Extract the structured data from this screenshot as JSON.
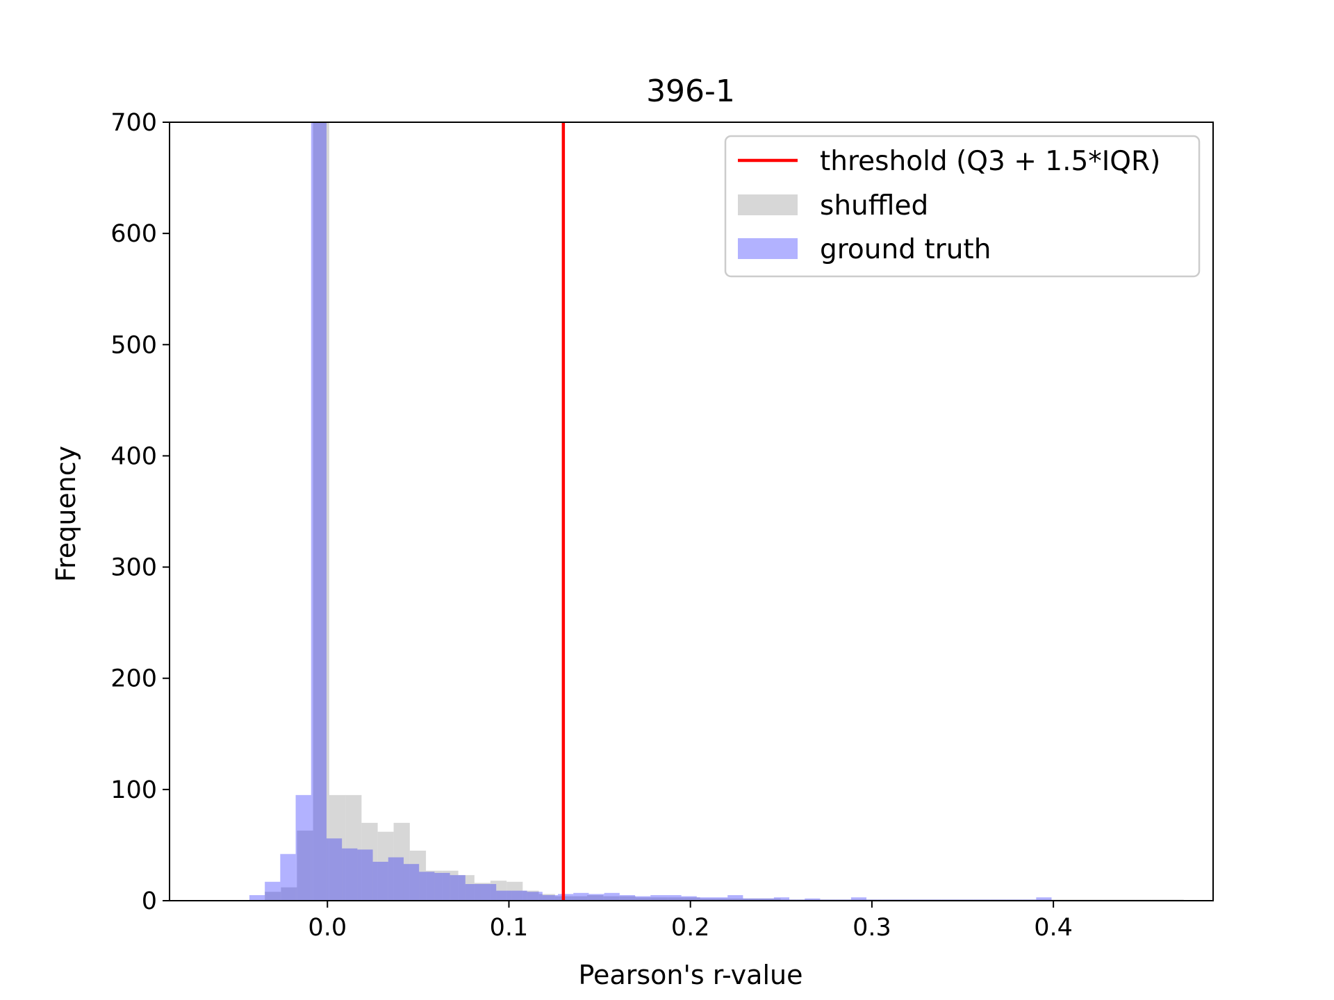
{
  "chart_data": {
    "type": "histogram",
    "title": "396-1",
    "xlabel": "Pearson's r-value",
    "ylabel": "Frequency",
    "xlim": [
      -0.087,
      0.488
    ],
    "ylim": [
      0,
      700
    ],
    "x_ticks": [
      0.0,
      0.1,
      0.2,
      0.3,
      0.4
    ],
    "x_tick_labels": [
      "0.0",
      "0.1",
      "0.2",
      "0.3",
      "0.4"
    ],
    "y_ticks": [
      0,
      100,
      200,
      300,
      400,
      500,
      600,
      700
    ],
    "y_tick_labels": [
      "0",
      "100",
      "200",
      "300",
      "400",
      "500",
      "600",
      "700"
    ],
    "threshold": 0.13,
    "legend": {
      "placement": "top-right",
      "entries": [
        {
          "label": "threshold (Q3 + 1.5*IQR)",
          "kind": "line",
          "color": "#ff0000"
        },
        {
          "label": "shuffled",
          "kind": "patch",
          "color": "#d3d3d3"
        },
        {
          "label": "ground truth",
          "kind": "patch",
          "color": "#0000ff"
        }
      ]
    },
    "series": [
      {
        "name": "shuffled",
        "color": "#d3d3d3",
        "opacity": 0.9,
        "bins": [
          [
            -0.0345,
            -0.0256,
            8
          ],
          [
            -0.0256,
            -0.0168,
            12
          ],
          [
            -0.0168,
            -0.0079,
            63
          ],
          [
            -0.0079,
            0.001,
            700
          ],
          [
            0.001,
            0.0099,
            95
          ],
          [
            0.0099,
            0.0188,
            95
          ],
          [
            0.0188,
            0.0277,
            70
          ],
          [
            0.0277,
            0.0365,
            62
          ],
          [
            0.0365,
            0.0454,
            70
          ],
          [
            0.0454,
            0.0543,
            45
          ],
          [
            0.0543,
            0.0632,
            27
          ],
          [
            0.0632,
            0.0721,
            27
          ],
          [
            0.0721,
            0.081,
            23
          ],
          [
            0.081,
            0.0898,
            16
          ],
          [
            0.0898,
            0.0987,
            18
          ],
          [
            0.0987,
            0.1076,
            17
          ],
          [
            0.1076,
            0.1165,
            9
          ],
          [
            0.1165,
            0.1254,
            6
          ],
          [
            0.1254,
            0.1343,
            4
          ],
          [
            0.1343,
            0.1431,
            4
          ],
          [
            0.1431,
            0.152,
            5
          ],
          [
            0.152,
            0.1609,
            4
          ],
          [
            0.1609,
            0.1698,
            4
          ],
          [
            0.1698,
            0.1787,
            3
          ],
          [
            0.1787,
            0.1876,
            3
          ],
          [
            0.1876,
            0.1964,
            3
          ],
          [
            0.1964,
            0.2053,
            3
          ],
          [
            0.2053,
            0.2142,
            2
          ],
          [
            0.2142,
            0.2231,
            2
          ],
          [
            0.2231,
            0.232,
            2
          ],
          [
            0.232,
            0.2409,
            2
          ],
          [
            0.2409,
            0.2497,
            2
          ],
          [
            0.2497,
            0.2586,
            1
          ],
          [
            0.2586,
            0.2675,
            1
          ],
          [
            0.2675,
            0.2764,
            1
          ],
          [
            0.2764,
            0.2853,
            1
          ],
          [
            0.2853,
            0.2942,
            1
          ],
          [
            0.2942,
            0.303,
            1
          ],
          [
            0.303,
            0.3119,
            1
          ],
          [
            0.3119,
            0.3208,
            1
          ],
          [
            0.3208,
            0.3297,
            1
          ],
          [
            0.3297,
            0.3386,
            1
          ],
          [
            0.3386,
            0.3475,
            1
          ],
          [
            0.3475,
            0.3563,
            1
          ],
          [
            0.3563,
            0.3652,
            1
          ],
          [
            0.3652,
            0.3741,
            1
          ],
          [
            0.3741,
            0.383,
            1
          ],
          [
            0.383,
            0.3919,
            1
          ],
          [
            0.3919,
            0.4008,
            1
          ],
          [
            0.4008,
            0.4097,
            1
          ],
          [
            0.4097,
            0.4185,
            1
          ],
          [
            0.4185,
            0.4274,
            1
          ],
          [
            0.4274,
            0.4363,
            1
          ],
          [
            0.4363,
            0.4452,
            1
          ],
          [
            0.4452,
            0.4541,
            1
          ],
          [
            0.4541,
            0.463,
            1
          ],
          [
            0.463,
            0.4718,
            1
          ]
        ]
      },
      {
        "name": "ground truth",
        "color": "#0000ff",
        "opacity": 0.3,
        "bins": [
          [
            -0.043,
            -0.0345,
            5
          ],
          [
            -0.0345,
            -0.026,
            17
          ],
          [
            -0.026,
            -0.0175,
            42
          ],
          [
            -0.0175,
            -0.009,
            95
          ],
          [
            -0.009,
            -0.0005,
            700
          ],
          [
            -0.0005,
            0.008,
            56
          ],
          [
            0.008,
            0.0165,
            47
          ],
          [
            0.0165,
            0.025,
            46
          ],
          [
            0.025,
            0.0335,
            35
          ],
          [
            0.0335,
            0.042,
            39
          ],
          [
            0.042,
            0.0505,
            33
          ],
          [
            0.0505,
            0.059,
            26
          ],
          [
            0.059,
            0.0675,
            25
          ],
          [
            0.0675,
            0.076,
            23
          ],
          [
            0.076,
            0.0845,
            15
          ],
          [
            0.0845,
            0.093,
            15
          ],
          [
            0.093,
            0.1015,
            9
          ],
          [
            0.1015,
            0.11,
            9
          ],
          [
            0.11,
            0.1185,
            8
          ],
          [
            0.1185,
            0.127,
            5
          ],
          [
            0.127,
            0.1355,
            6
          ],
          [
            0.1355,
            0.144,
            7
          ],
          [
            0.144,
            0.1525,
            6
          ],
          [
            0.1525,
            0.161,
            7
          ],
          [
            0.161,
            0.1695,
            5
          ],
          [
            0.1695,
            0.178,
            4
          ],
          [
            0.178,
            0.1865,
            5
          ],
          [
            0.1865,
            0.195,
            5
          ],
          [
            0.195,
            0.2035,
            4
          ],
          [
            0.2035,
            0.212,
            3
          ],
          [
            0.212,
            0.2205,
            3
          ],
          [
            0.2205,
            0.229,
            5
          ],
          [
            0.229,
            0.2375,
            2
          ],
          [
            0.2375,
            0.246,
            2
          ],
          [
            0.246,
            0.2545,
            3
          ],
          [
            0.2545,
            0.263,
            1
          ],
          [
            0.263,
            0.2715,
            2
          ],
          [
            0.2715,
            0.28,
            1
          ],
          [
            0.28,
            0.2885,
            1
          ],
          [
            0.2885,
            0.297,
            3
          ],
          [
            0.297,
            0.3055,
            1
          ],
          [
            0.3055,
            0.314,
            1
          ],
          [
            0.314,
            0.3225,
            1
          ],
          [
            0.3225,
            0.331,
            1
          ],
          [
            0.331,
            0.3395,
            1
          ],
          [
            0.3395,
            0.348,
            1
          ],
          [
            0.348,
            0.3565,
            1
          ],
          [
            0.3565,
            0.365,
            1
          ],
          [
            0.365,
            0.3735,
            1
          ],
          [
            0.3735,
            0.382,
            1
          ],
          [
            0.382,
            0.3905,
            1
          ],
          [
            0.3905,
            0.399,
            3
          ]
        ]
      }
    ]
  }
}
